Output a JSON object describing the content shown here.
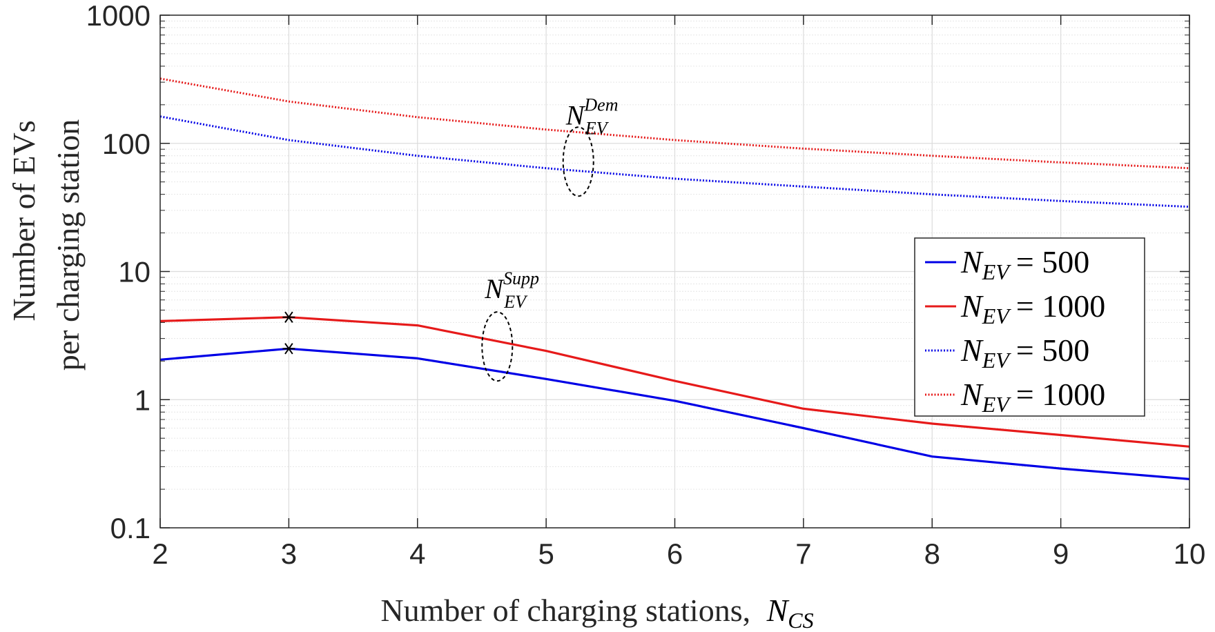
{
  "chart_data": {
    "type": "line",
    "yscale": "log",
    "x": [
      2,
      3,
      4,
      5,
      6,
      7,
      8,
      9,
      10
    ],
    "xlim": [
      2,
      10
    ],
    "ylim": [
      0.1,
      1000
    ],
    "xticks": [
      "2",
      "3",
      "4",
      "5",
      "6",
      "7",
      "8",
      "9",
      "10"
    ],
    "yticks": [
      "0.1",
      "1",
      "10",
      "100",
      "1000"
    ],
    "xlabel": "Number of charging stations,",
    "xlabel_math": {
      "base": "N",
      "sub": "CS"
    },
    "ylabel": [
      "Number of EVs",
      "per charging station"
    ],
    "grid": true,
    "legend_position": "right",
    "series": [
      {
        "name": "N_EV = 500",
        "label_base": "N",
        "label_sub": "EV",
        "label_rhs": "= 500",
        "color": "#0000e6",
        "style": "solid",
        "group": "supply",
        "values": [
          2.05,
          2.5,
          2.1,
          1.45,
          0.98,
          0.6,
          0.36,
          0.29,
          0.24
        ]
      },
      {
        "name": "N_EV = 1000",
        "label_base": "N",
        "label_sub": "EV",
        "label_rhs": "= 1000",
        "color": "#e61a1a",
        "style": "solid",
        "group": "supply",
        "values": [
          4.1,
          4.4,
          3.8,
          2.4,
          1.4,
          0.85,
          0.65,
          0.53,
          0.43
        ]
      },
      {
        "name": "N_EV = 500",
        "label_base": "N",
        "label_sub": "EV",
        "label_rhs": "= 500",
        "color": "#0000e6",
        "style": "dotted",
        "group": "demand",
        "values": [
          162,
          106,
          80,
          64,
          53,
          46,
          40,
          35.5,
          32
        ]
      },
      {
        "name": "N_EV = 1000",
        "label_base": "N",
        "label_sub": "EV",
        "label_rhs": "= 1000",
        "color": "#e61a1a",
        "style": "dotted",
        "group": "demand",
        "values": [
          320,
          212,
          160,
          128,
          106,
          91,
          80,
          71,
          64
        ]
      }
    ],
    "markers": [
      {
        "x": 3,
        "y": 4.4,
        "symbol": "*"
      },
      {
        "x": 3,
        "y": 2.5,
        "symbol": "*"
      }
    ],
    "annotations": [
      {
        "base": "N",
        "sub": "EV",
        "sup": "Dem",
        "text_at": [
          5.25,
          140
        ],
        "ellipse_at": [
          5.25,
          72
        ]
      },
      {
        "base": "N",
        "sub": "EV",
        "sup": "Supp",
        "text_at": [
          4.62,
          6.2
        ],
        "ellipse_at": [
          4.62,
          2.6
        ]
      }
    ]
  }
}
